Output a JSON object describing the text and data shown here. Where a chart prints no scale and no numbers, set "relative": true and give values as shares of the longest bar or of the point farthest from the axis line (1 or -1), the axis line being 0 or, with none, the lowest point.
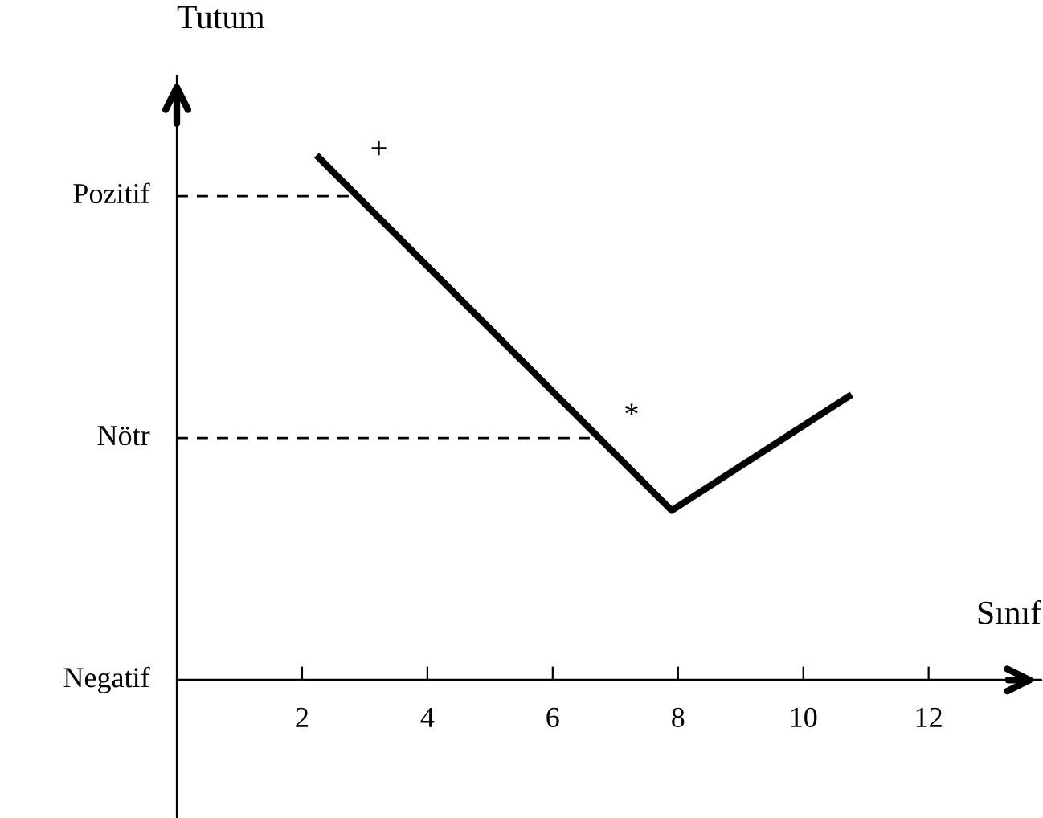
{
  "chart_data": {
    "type": "line",
    "xlabel": "Sınıf",
    "ylabel": "Tutum",
    "relative": true,
    "x": [
      2.23,
      7.9,
      10.77
    ],
    "series": [
      {
        "color": "#000000",
        "values": [
          1,
          0.323,
          0.544
        ]
      }
    ],
    "xlim": [
      0,
      13.8
    ],
    "xticks": [
      2,
      4,
      6,
      8,
      10,
      12
    ],
    "ref_lines": [
      {
        "axis": "y",
        "value": 0.922,
        "label": "Pozitif",
        "color": "#000000",
        "line_style": "dashed"
      },
      {
        "axis": "y",
        "value": 0.461,
        "label": "Nötr",
        "color": "#000000",
        "line_style": "dashed"
      },
      {
        "axis": "y",
        "value": 0,
        "label": "Negatif",
        "color": "#000000",
        "line_style": "solid"
      }
    ],
    "annotations": [
      "+",
      "*"
    ]
  }
}
